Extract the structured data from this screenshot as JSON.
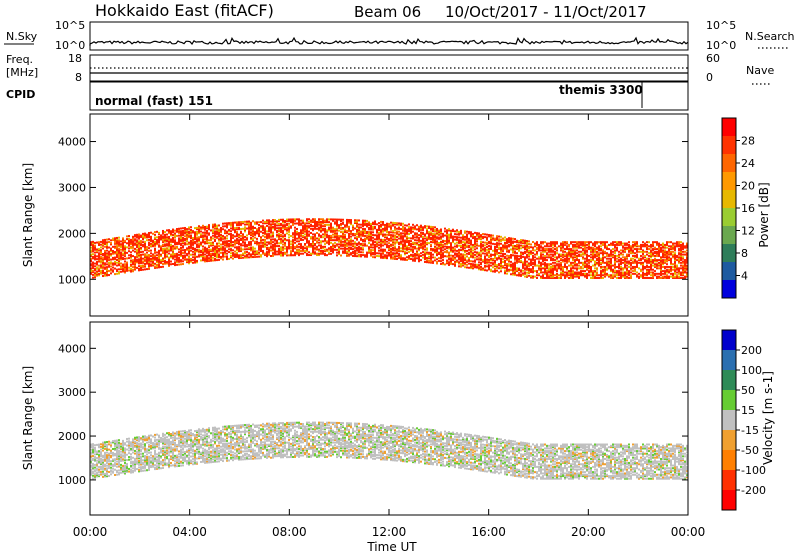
{
  "header": {
    "station": "Hokkaido East (fitACF)",
    "beam": "Beam 06",
    "dates": "10/Oct/2017 - 11/Oct/2017"
  },
  "noise_panel": {
    "left_label": "N.Sky",
    "left_ticks": [
      "10^5",
      "10^0"
    ],
    "right_label": "N.Search",
    "right_ticks": [
      "10^5",
      "10^0"
    ]
  },
  "freq_panel": {
    "left_label_1": "Freq.",
    "left_label_2": "[MHz]",
    "left_ticks": [
      "18",
      "8"
    ],
    "right_label": "Nave",
    "right_ticks": [
      "60",
      "0"
    ]
  },
  "cpid_panel": {
    "label": "CPID",
    "mode_1": "normal (fast) 151",
    "mode_2": "themis 3300"
  },
  "chart_data": [
    {
      "type": "heatmap",
      "name": "power",
      "ylabel": "Slant Range [km]",
      "yticks": [
        "1000",
        "2000",
        "3000",
        "4000"
      ],
      "ylim": [
        200,
        4600
      ],
      "colorbar": {
        "label": "Power [dB]",
        "ticks": [
          "4",
          "8",
          "12",
          "16",
          "20",
          "24",
          "28"
        ],
        "colors": [
          "#0000dd",
          "#1e5aa0",
          "#2e7d5a",
          "#6aa84f",
          "#9acd32",
          "#e6b800",
          "#ff9900",
          "#ff6600",
          "#ff3300",
          "#ff0000"
        ]
      }
    },
    {
      "type": "heatmap",
      "name": "velocity",
      "ylabel": "Slant Range [km]",
      "yticks": [
        "1000",
        "2000",
        "3000",
        "4000"
      ],
      "ylim": [
        200,
        4600
      ],
      "colorbar": {
        "label": "Velocity [m s-1]",
        "ticks": [
          "200",
          "100",
          "50",
          "15",
          "-15",
          "-50",
          "-100",
          "-200"
        ],
        "colors": [
          "#0000cc",
          "#2a6fb0",
          "#2e8b57",
          "#66cc33",
          "#c0c0c0",
          "#f0a030",
          "#ff7f00",
          "#ff3000",
          "#ff0000"
        ]
      }
    }
  ],
  "time_axis": {
    "ticks": [
      "00:00",
      "04:00",
      "08:00",
      "12:00",
      "16:00",
      "20:00",
      "00:00"
    ],
    "label": "Time UT"
  }
}
